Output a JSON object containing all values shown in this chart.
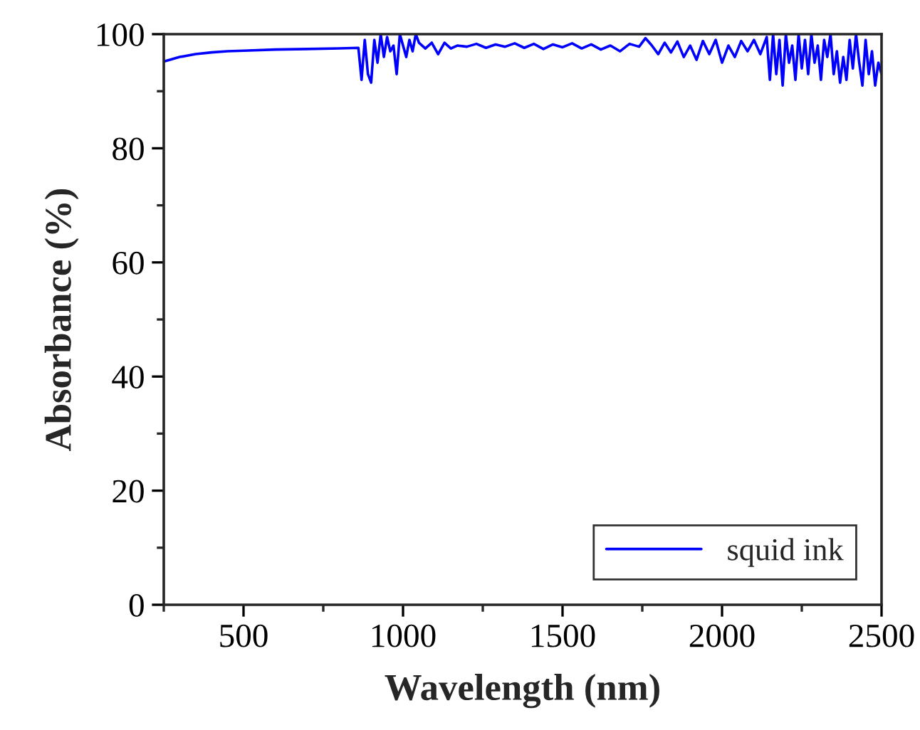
{
  "chart_data": {
    "type": "line",
    "xlabel": "Wavelength (nm)",
    "ylabel": "Absorbance (%)",
    "xlim": [
      250,
      2500
    ],
    "xticks": [
      500,
      1000,
      1500,
      2000,
      2500
    ],
    "ylim": [
      0,
      100
    ],
    "yticks": [
      0,
      20,
      40,
      60,
      80,
      100
    ],
    "grid": false,
    "legend": "bottom right",
    "marker": "none",
    "line_style": "solid",
    "series": [
      {
        "name": "squid ink",
        "color": "#0000ff",
        "x": [
          250,
          275,
          300,
          350,
          400,
          450,
          500,
          600,
          700,
          800,
          860,
          870,
          880,
          890,
          900,
          910,
          920,
          930,
          940,
          950,
          960,
          970,
          980,
          990,
          1000,
          1010,
          1020,
          1030,
          1040,
          1050,
          1070,
          1090,
          1110,
          1130,
          1150,
          1170,
          1200,
          1230,
          1260,
          1290,
          1320,
          1350,
          1380,
          1410,
          1440,
          1470,
          1500,
          1530,
          1560,
          1590,
          1620,
          1650,
          1680,
          1710,
          1740,
          1760,
          1780,
          1800,
          1820,
          1840,
          1860,
          1880,
          1900,
          1920,
          1940,
          1960,
          1980,
          2000,
          2020,
          2040,
          2060,
          2080,
          2100,
          2120,
          2140,
          2150,
          2160,
          2170,
          2180,
          2190,
          2200,
          2210,
          2220,
          2230,
          2240,
          2250,
          2260,
          2270,
          2280,
          2290,
          2300,
          2310,
          2320,
          2330,
          2340,
          2350,
          2360,
          2370,
          2380,
          2390,
          2400,
          2410,
          2420,
          2430,
          2440,
          2450,
          2460,
          2470,
          2480,
          2490,
          2500
        ],
        "values": [
          95.2,
          95.6,
          96,
          96.5,
          96.8,
          97,
          97.1,
          97.3,
          97.4,
          97.5,
          97.6,
          92,
          99,
          93,
          91.5,
          99,
          95,
          100,
          96,
          99.5,
          97,
          98,
          93,
          100,
          98,
          96,
          99,
          97,
          100,
          98.5,
          97.5,
          98.5,
          96.5,
          98.5,
          97.5,
          98,
          97.8,
          98.3,
          97.6,
          98.2,
          97.8,
          98.4,
          97.6,
          98.3,
          97.4,
          98.2,
          97.7,
          98.4,
          97.5,
          98.2,
          97.3,
          98,
          97,
          98.3,
          97.8,
          99.3,
          98,
          96.5,
          98.5,
          96.8,
          98.7,
          96,
          98,
          95.5,
          98.8,
          96.5,
          99,
          95,
          98,
          96,
          98.8,
          97,
          99,
          96.5,
          99.5,
          92,
          100,
          93,
          99,
          91,
          100,
          95,
          98,
          92,
          100,
          94,
          99,
          93,
          100,
          95,
          98,
          92,
          99,
          96,
          100,
          93,
          97,
          91.5,
          96,
          92,
          99,
          94,
          100,
          95,
          91,
          99,
          93,
          97,
          91,
          95,
          93
        ]
      }
    ]
  }
}
